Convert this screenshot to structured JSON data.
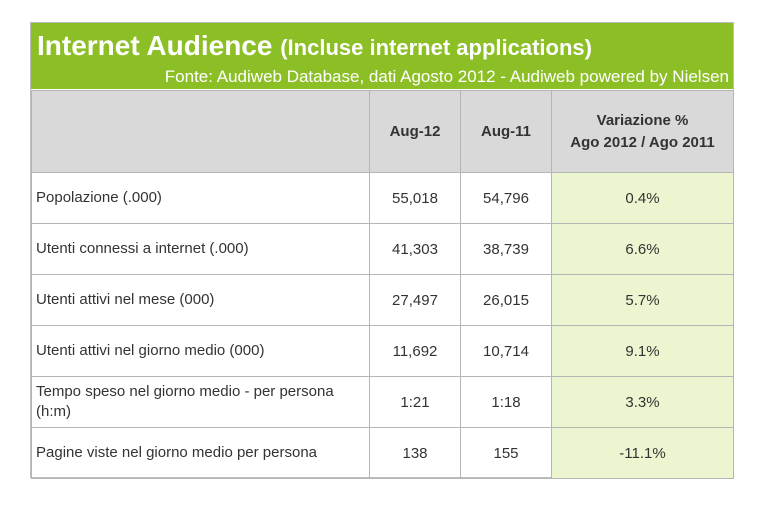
{
  "header": {
    "title": "Internet Audience",
    "title_sub": "(Incluse internet applications)",
    "source": "Fonte: Audiweb Database, dati Agosto 2012 - Audiweb powered by Nielsen",
    "color": "#8cbf26"
  },
  "table": {
    "columns": [
      "",
      "Aug-12",
      "Aug-11",
      "Variazione %",
      "Ago 2012 / Ago 2011"
    ],
    "rows": [
      {
        "label": "Popolazione (.000)",
        "aug12": "55,018",
        "aug11": "54,796",
        "var": "0.4%"
      },
      {
        "label": "Utenti connessi a internet (.000)",
        "aug12": "41,303",
        "aug11": "38,739",
        "var": "6.6%"
      },
      {
        "label": "Utenti attivi nel mese (000)",
        "aug12": "27,497",
        "aug11": "26,015",
        "var": "5.7%"
      },
      {
        "label": "Utenti attivi nel giorno medio (000)",
        "aug12": "11,692",
        "aug11": "10,714",
        "var": "9.1%"
      },
      {
        "label": "Tempo speso nel giorno medio - per persona (h:m)",
        "aug12": "1:21",
        "aug11": "1:18",
        "var": "3.3%"
      },
      {
        "label": "Pagine viste nel giorno medio per persona",
        "aug12": "138",
        "aug11": "155",
        "var": "-11.1%"
      }
    ],
    "header_bg": "#d9d9d9",
    "variation_bg": "#ebf5d0"
  }
}
